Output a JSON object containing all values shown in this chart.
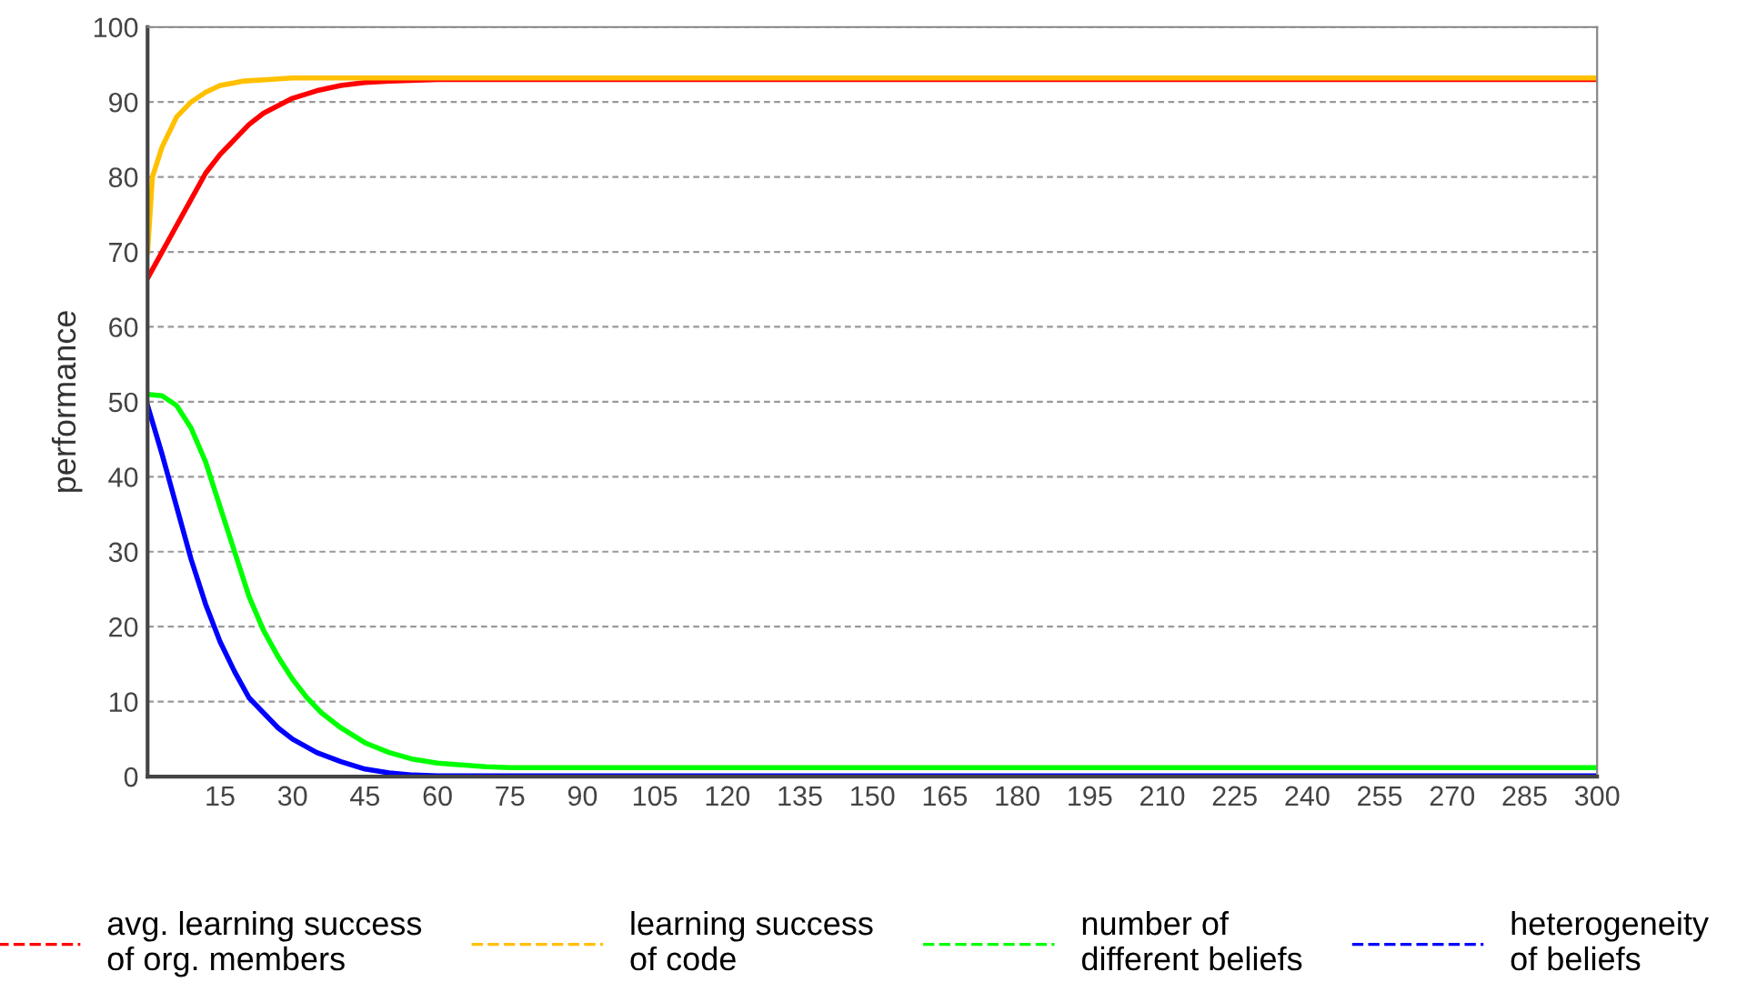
{
  "chart_data": {
    "type": "line",
    "ylabel": "performance",
    "xlim": [
      0,
      300
    ],
    "ylim": [
      0,
      100
    ],
    "xticks": [
      15,
      30,
      45,
      60,
      75,
      90,
      105,
      120,
      135,
      150,
      165,
      180,
      195,
      210,
      225,
      240,
      255,
      270,
      285,
      300
    ],
    "yticks": [
      0,
      10,
      20,
      30,
      40,
      50,
      60,
      70,
      80,
      90,
      100
    ],
    "grid": "y",
    "legend": "bottom",
    "marker": "none",
    "line_style": "solid",
    "series": [
      {
        "name": "avg. learning success\nof org. members",
        "color": "#ff0000",
        "x": [
          0,
          3,
          6,
          9,
          12,
          15,
          18,
          21,
          24,
          27,
          30,
          35,
          40,
          45,
          50,
          60,
          65,
          300
        ],
        "values": [
          66.5,
          70,
          73.5,
          77,
          80.5,
          83,
          85,
          87,
          88.5,
          89.5,
          90.5,
          91.5,
          92.2,
          92.6,
          92.8,
          93,
          93,
          93
        ]
      },
      {
        "name": "learning success\nof code",
        "color": "#ffc000",
        "x": [
          0,
          1,
          3,
          6,
          9,
          12,
          15,
          20,
          25,
          30,
          300
        ],
        "values": [
          70,
          80,
          84,
          88,
          90,
          91.3,
          92.2,
          92.8,
          93,
          93.2,
          93.2
        ]
      },
      {
        "name": "number of\ndifferent beliefs",
        "color": "#00ff00",
        "x": [
          0,
          3,
          6,
          9,
          12,
          15,
          18,
          21,
          24,
          27,
          30,
          33,
          36,
          40,
          45,
          50,
          55,
          60,
          70,
          75,
          300
        ],
        "values": [
          51,
          50.8,
          49.5,
          46.5,
          42,
          36,
          30,
          24,
          19.5,
          16,
          13,
          10.5,
          8.5,
          6.5,
          4.5,
          3.2,
          2.3,
          1.8,
          1.3,
          1.2,
          1.2
        ]
      },
      {
        "name": "heterogeneity\nof beliefs",
        "color": "#0000ff",
        "x": [
          0,
          3,
          6,
          9,
          12,
          15,
          18,
          21,
          24,
          27,
          30,
          35,
          40,
          45,
          50,
          55,
          60,
          300
        ],
        "values": [
          49.5,
          43,
          36,
          29,
          23,
          18,
          14,
          10.5,
          8.5,
          6.5,
          5,
          3.2,
          2,
          1,
          0.5,
          0.2,
          0.1,
          0.1
        ]
      }
    ]
  }
}
